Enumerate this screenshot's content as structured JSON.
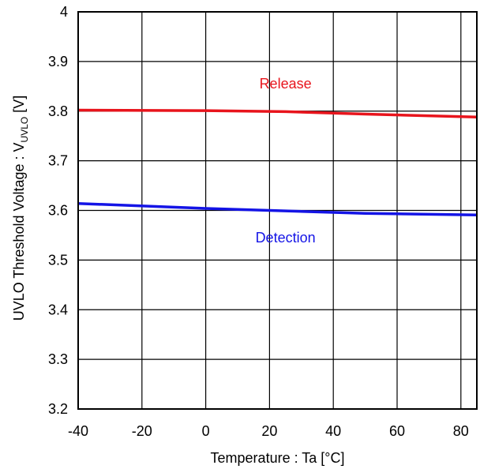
{
  "chart_data": {
    "type": "line",
    "xlabel": "Temperature : Ta [°C]",
    "ylabel_main": "UVLO Threshold Voltage : V",
    "ylabel_sub": "UVLO",
    "ylabel_unit": " [V]",
    "xlim": [
      -40,
      85
    ],
    "ylim": [
      3.2,
      4.0
    ],
    "x_ticks": [
      -40,
      -20,
      0,
      20,
      40,
      60,
      80
    ],
    "x_tick_labels": [
      "-40",
      "-20",
      "0",
      "20",
      "40",
      "60",
      "80"
    ],
    "y_ticks": [
      3.2,
      3.3,
      3.4,
      3.5,
      3.6,
      3.7,
      3.8,
      3.9,
      4.0
    ],
    "y_tick_labels": [
      "3.2",
      "3.3",
      "3.4",
      "3.5",
      "3.6",
      "3.7",
      "3.8",
      "3.9",
      "4"
    ],
    "grid": true,
    "series": [
      {
        "name": "Release",
        "color": "#e8141c",
        "label_at": [
          25,
          3.855
        ],
        "points": [
          [
            -40,
            3.802
          ],
          [
            0,
            3.801
          ],
          [
            25,
            3.799
          ],
          [
            50,
            3.794
          ],
          [
            85,
            3.788
          ]
        ]
      },
      {
        "name": "Detection",
        "color": "#1414e6",
        "label_at": [
          25,
          3.545
        ],
        "points": [
          [
            -40,
            3.614
          ],
          [
            0,
            3.604
          ],
          [
            25,
            3.599
          ],
          [
            50,
            3.594
          ],
          [
            85,
            3.591
          ]
        ]
      }
    ]
  }
}
